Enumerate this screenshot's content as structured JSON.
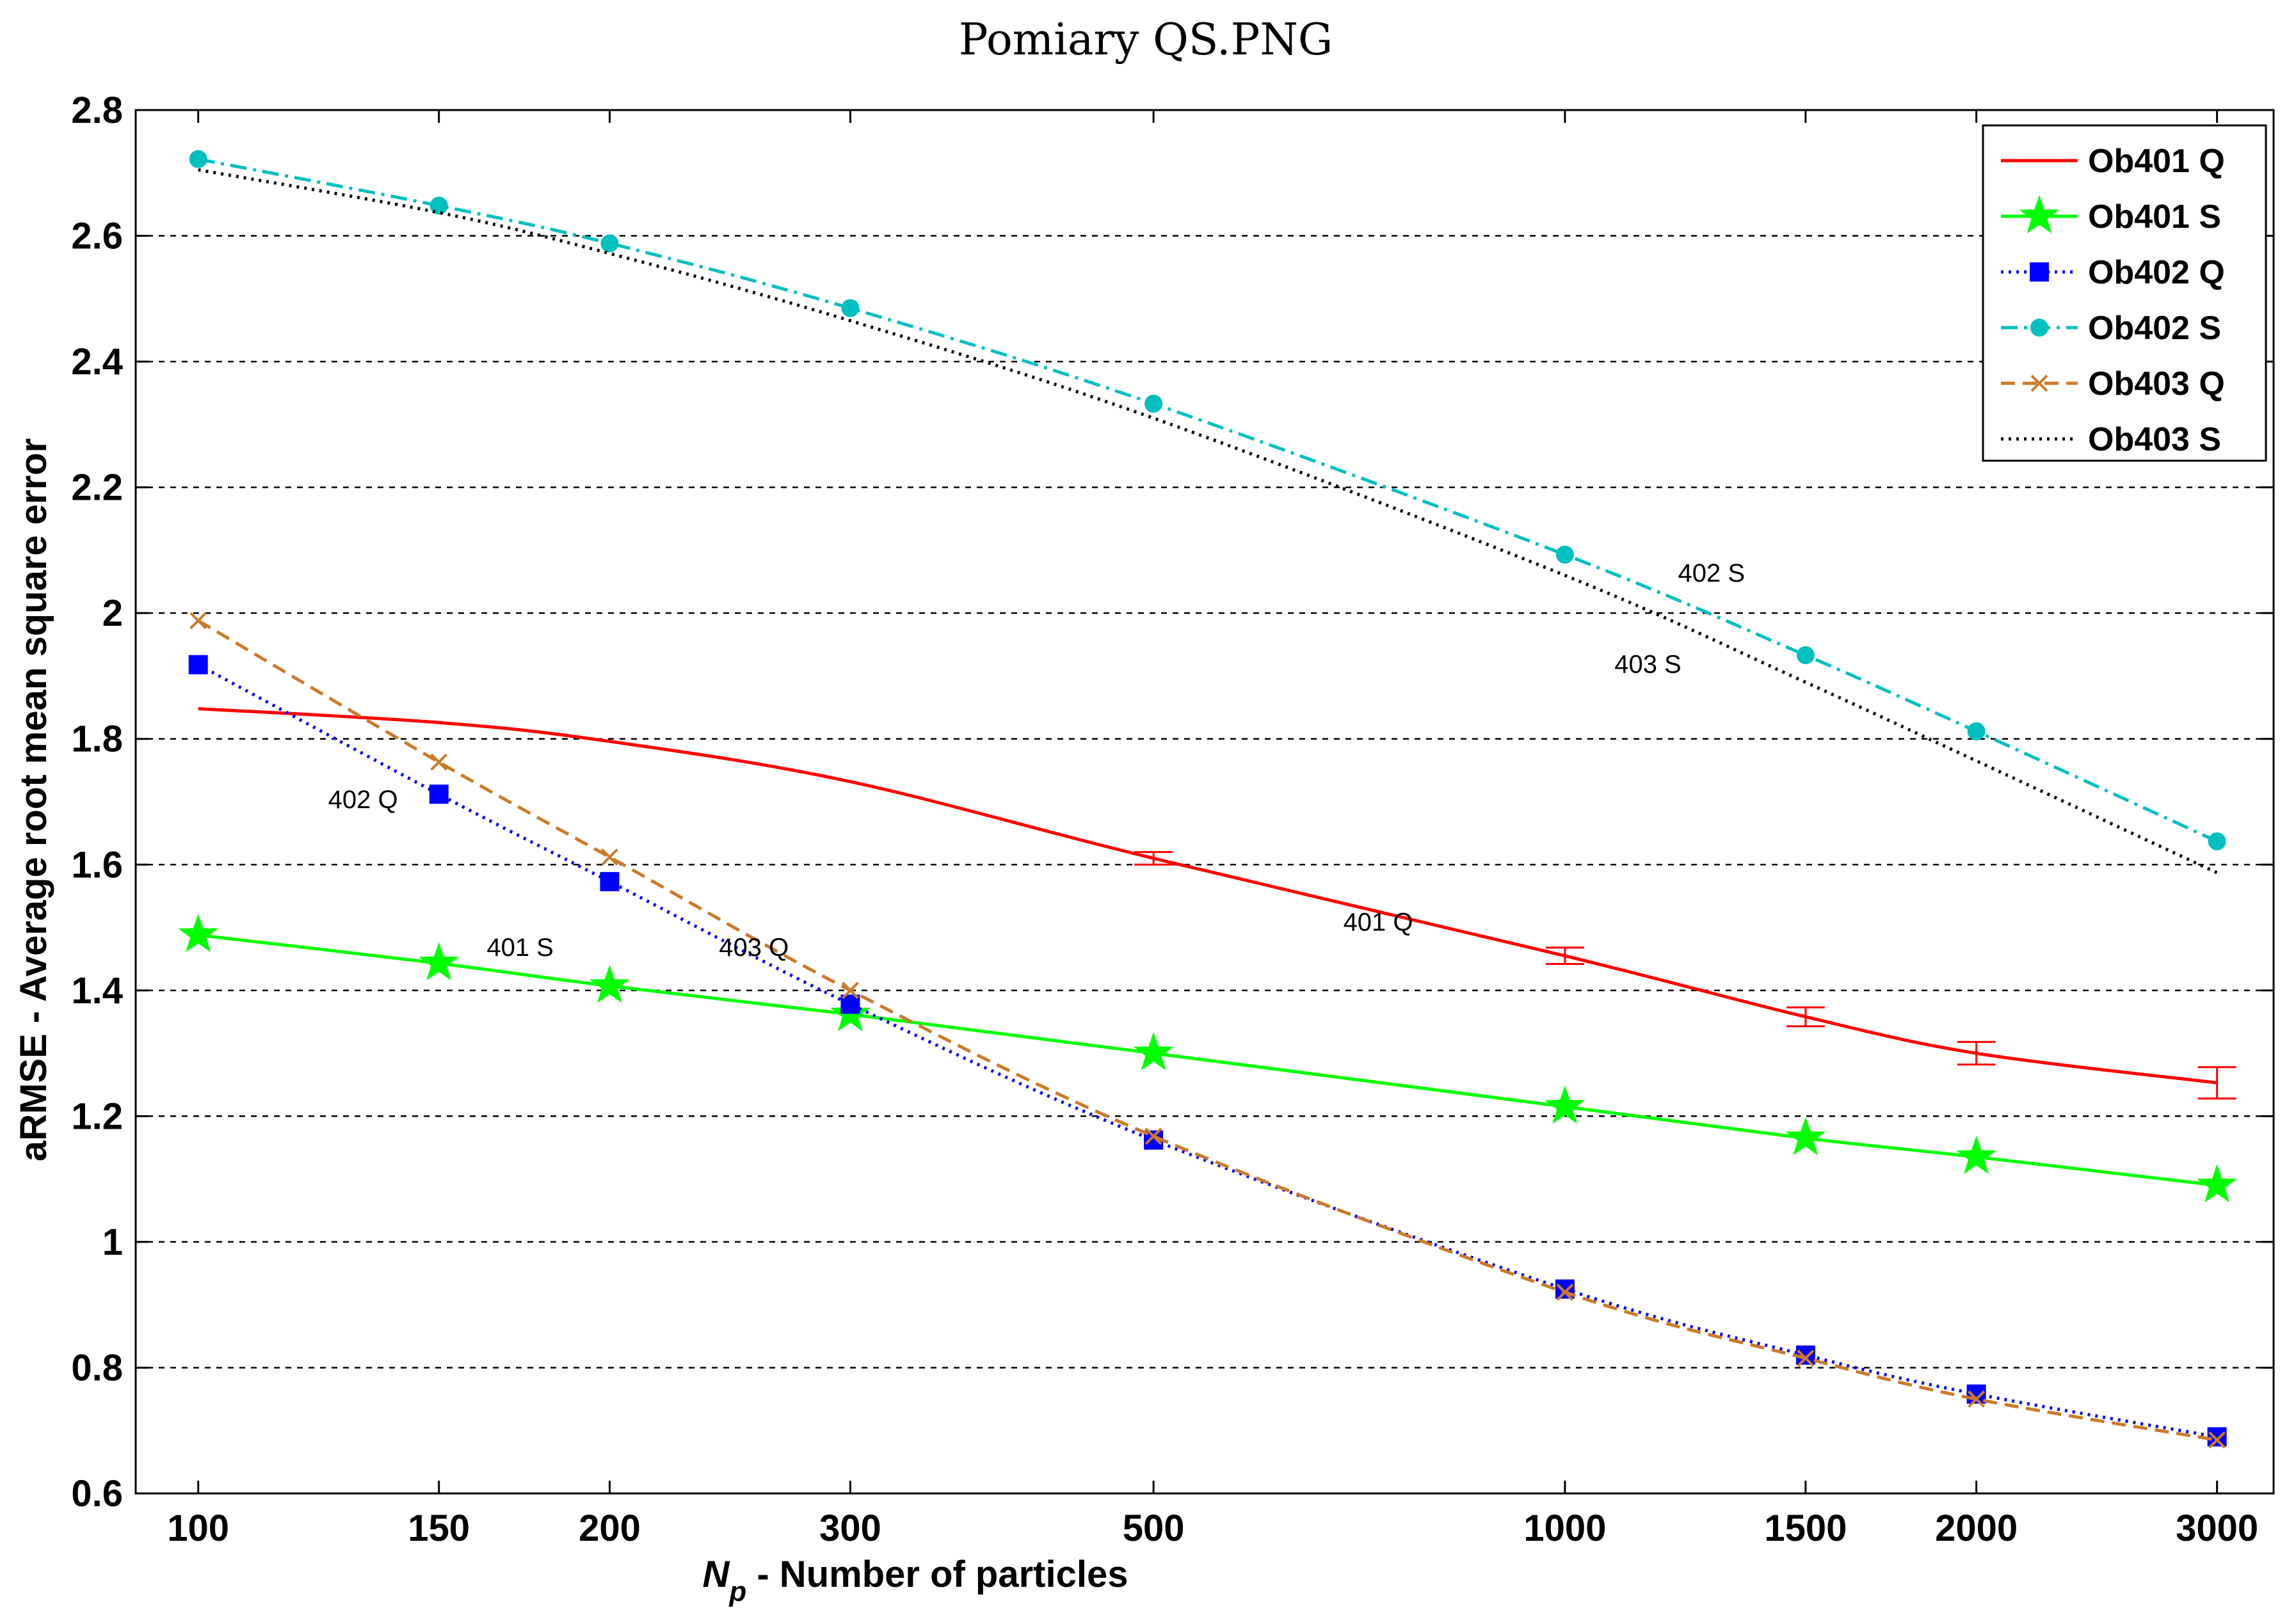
{
  "chart_data": {
    "type": "line",
    "title": "Pomiary QS.PNG",
    "xlabel": {
      "italic": "N",
      "sub": "p",
      "rest": " - Number of particles"
    },
    "ylabel": "aRMSE - Average root mean square error",
    "x_scale": "log",
    "xlim": [
      90,
      3300
    ],
    "ylim": [
      0.6,
      2.8
    ],
    "x_ticks": [
      100,
      150,
      200,
      300,
      500,
      1000,
      1500,
      2000,
      3000
    ],
    "y_ticks": [
      0.6,
      0.8,
      1,
      1.2,
      1.4,
      1.6,
      1.8,
      2,
      2.2,
      2.4,
      2.6,
      2.8
    ],
    "y_tick_labels": [
      "0.6",
      "0.8",
      "1",
      "1.2",
      "1.4",
      "1.6",
      "1.8",
      "2",
      "2.2",
      "2.4",
      "2.6",
      "2.8"
    ],
    "grid": "horizontal-dotted",
    "legend_position": "top-right",
    "series": [
      {
        "name": "Ob401 Q",
        "color": "#ff0000",
        "dash": "solid",
        "marker": "none",
        "x": [
          100,
          150,
          200,
          300,
          500,
          1000,
          1500,
          2000,
          3000
        ],
        "values": [
          1.848,
          1.826,
          1.796,
          1.732,
          1.61,
          1.455,
          1.358,
          1.3,
          1.253
        ],
        "error": [
          0,
          0,
          0,
          0,
          0.01,
          0.013,
          0.015,
          0.018,
          0.025
        ]
      },
      {
        "name": "Ob401 S",
        "color": "#00ff00",
        "dash": "solid",
        "marker": "star",
        "x": [
          100,
          150,
          200,
          300,
          500,
          1000,
          1500,
          2000,
          3000
        ],
        "values": [
          1.488,
          1.443,
          1.407,
          1.362,
          1.3,
          1.215,
          1.165,
          1.135,
          1.09
        ]
      },
      {
        "name": "Ob402 Q",
        "color": "#0000ff",
        "dash": "dotted",
        "marker": "square",
        "x": [
          100,
          150,
          200,
          300,
          500,
          1000,
          1500,
          2000,
          3000
        ],
        "values": [
          1.918,
          1.712,
          1.573,
          1.378,
          1.162,
          0.925,
          0.82,
          0.758,
          0.69
        ]
      },
      {
        "name": "Ob402 S",
        "color": "#00bfbf",
        "dash": "dashdot",
        "marker": "circle",
        "x": [
          100,
          150,
          200,
          300,
          500,
          1000,
          1500,
          2000,
          3000
        ],
        "values": [
          2.722,
          2.648,
          2.588,
          2.485,
          2.333,
          2.093,
          1.933,
          1.812,
          1.637
        ]
      },
      {
        "name": "Ob403 Q",
        "color": "#cc7a29",
        "dash": "dashed",
        "marker": "x",
        "x": [
          100,
          150,
          200,
          300,
          500,
          1000,
          1500,
          2000,
          3000
        ],
        "values": [
          1.988,
          1.763,
          1.612,
          1.4,
          1.168,
          0.92,
          0.815,
          0.75,
          0.685
        ]
      },
      {
        "name": "Ob403 S",
        "color": "#000000",
        "dash": "dotted",
        "marker": "none",
        "x": [
          100,
          150,
          200,
          300,
          500,
          1000,
          1500,
          2000,
          3000
        ],
        "values": [
          2.705,
          2.637,
          2.572,
          2.465,
          2.31,
          2.06,
          1.89,
          1.765,
          1.587
        ]
      }
    ],
    "annotations": [
      {
        "text": "402 S",
        "x": 1280,
        "y": 2.05
      },
      {
        "text": "403 S",
        "x": 1150,
        "y": 1.905
      },
      {
        "text": "402 Q",
        "x": 132,
        "y": 1.69
      },
      {
        "text": "403 Q",
        "x": 255,
        "y": 1.455
      },
      {
        "text": "401 S",
        "x": 172,
        "y": 1.455
      },
      {
        "text": "401 Q",
        "x": 730,
        "y": 1.495
      }
    ]
  }
}
